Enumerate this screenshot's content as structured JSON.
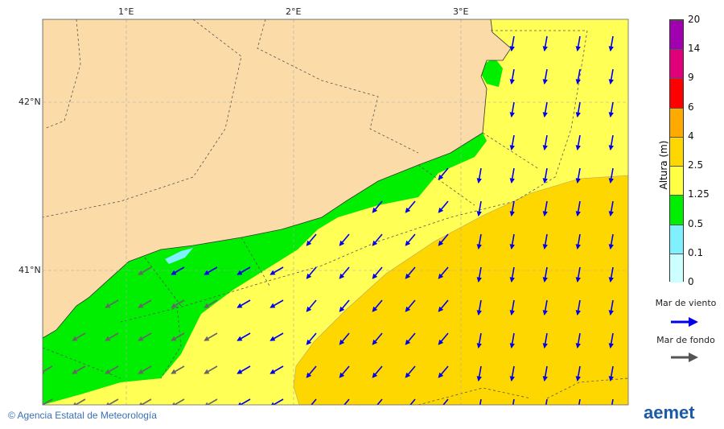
{
  "map": {
    "lon_labels": [
      "1°E",
      "2°E",
      "3°E"
    ],
    "lat_labels": [
      "42°N",
      "41°N"
    ],
    "colors": {
      "land": "#fbdca8",
      "sea_0_5_1_25": "#00ee00",
      "sea_1_25_2_5": "#ffff55",
      "sea_2_5_4": "#ffd700",
      "sea_0_1_0_5": "#80f0ff",
      "wind_arrow": "#0000ee",
      "swell_arrow": "#666666"
    }
  },
  "colorbar": {
    "title": "Altura (m)",
    "levels": [
      "0",
      "0.1",
      "0.5",
      "1.25",
      "2.5",
      "4",
      "6",
      "9",
      "14",
      "20"
    ],
    "colors": [
      "#ccffff",
      "#80f0ff",
      "#00ee00",
      "#ffff44",
      "#ffd700",
      "#ffaa00",
      "#ff0000",
      "#e0007a",
      "#a000b0"
    ]
  },
  "legend": {
    "wind_sea": "Mar de viento",
    "swell": "Mar de fondo"
  },
  "footer": {
    "copyright": "© Agencia Estatal de Meteorología",
    "logo": "aemet"
  }
}
